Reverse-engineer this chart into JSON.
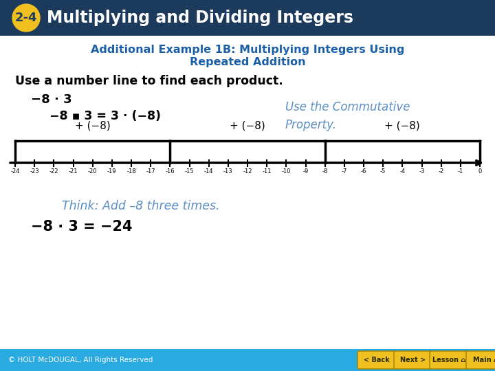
{
  "header_bg": "#1b3a5c",
  "header_text": "Multiplying and Dividing Integers",
  "badge_bg": "#f0c020",
  "badge_text": "2-4",
  "subtitle_line1": "Additional Example 1B: Multiplying Integers Using",
  "subtitle_line2": "Repeated Addition",
  "subtitle_color": "#1a5fa8",
  "body_line1": "Use a number line to find each product.",
  "problem_line": "−8 · 3",
  "equation_line": "−8 ▪ 3 = 3 · (−8)",
  "commutative_text": "Use the Commutative\nProperty.",
  "commutative_color": "#5b8ec4",
  "number_line_min": -24,
  "number_line_max": 0,
  "jumps": [
    -24,
    -16,
    -8,
    0
  ],
  "jump_labels": [
    "+ (−8)",
    "+ (−8)",
    "+ (−8)"
  ],
  "think_text": "Think: Add –8 three times.",
  "think_color": "#5b8ec4",
  "answer_line": "−8 · 3 = −24",
  "footer_bg": "#29abe2",
  "footer_text": "© HOLT McDOUGAL, All Rights Reserved",
  "footer_color": "#ffffff",
  "bg_color": "#ffffff",
  "nav_buttons": [
    "< Back",
    "Next >",
    "Lesson ⌂",
    "Main ⌂"
  ]
}
